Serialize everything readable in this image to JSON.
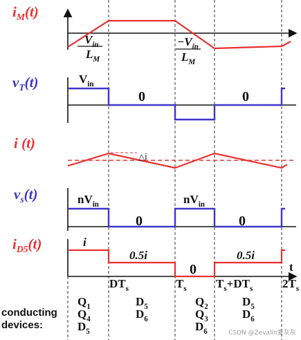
{
  "waveforms": {
    "i_M": {
      "label": [
        "i",
        "M",
        "(t)"
      ],
      "slope_up": {
        "numerator": [
          "V",
          "in"
        ],
        "denominator": [
          "L",
          "M"
        ]
      },
      "slope_down": {
        "numerator": [
          "−V",
          "in"
        ],
        "denominator": [
          "L",
          "M"
        ]
      }
    },
    "v_T": {
      "label": [
        "v",
        "T",
        "(t)"
      ],
      "high": [
        "V",
        "in"
      ],
      "zero_1": "0",
      "zero_2": "0"
    },
    "i": {
      "label": "i (t)",
      "ripple": "△i"
    },
    "v_s": {
      "label": [
        "v",
        "s",
        "(t)"
      ],
      "high_1": [
        "nV",
        "in"
      ],
      "high_2": [
        "nV",
        "in"
      ],
      "zero_1": "0",
      "zero_2": "0"
    },
    "i_D5": {
      "label": [
        "i",
        "D5",
        "(t)"
      ],
      "peak": "i",
      "half_1": "0.5i",
      "zero": "0",
      "half_2": "0.5i"
    }
  },
  "time_axis": {
    "label": "t",
    "ticks": [
      [
        "DT",
        "s"
      ],
      [
        "T",
        "s"
      ],
      [
        "T",
        "s",
        "+DT",
        "s"
      ],
      [
        "2T",
        "s"
      ]
    ]
  },
  "conducting_devices": {
    "label": [
      "conducting",
      "devices:"
    ],
    "intervals": [
      [
        [
          "Q",
          "1"
        ],
        [
          "Q",
          "4"
        ],
        [
          "D",
          "5"
        ]
      ],
      [
        [
          "D",
          "5"
        ],
        [
          "D",
          "6"
        ]
      ],
      [
        [
          "Q",
          "2"
        ],
        [
          "Q",
          "3"
        ],
        [
          "D",
          "6"
        ]
      ],
      [
        [
          "D",
          "5"
        ],
        [
          "D",
          "6"
        ]
      ]
    ]
  },
  "watermark": "CSDN @Zevalin爱灰灰"
}
